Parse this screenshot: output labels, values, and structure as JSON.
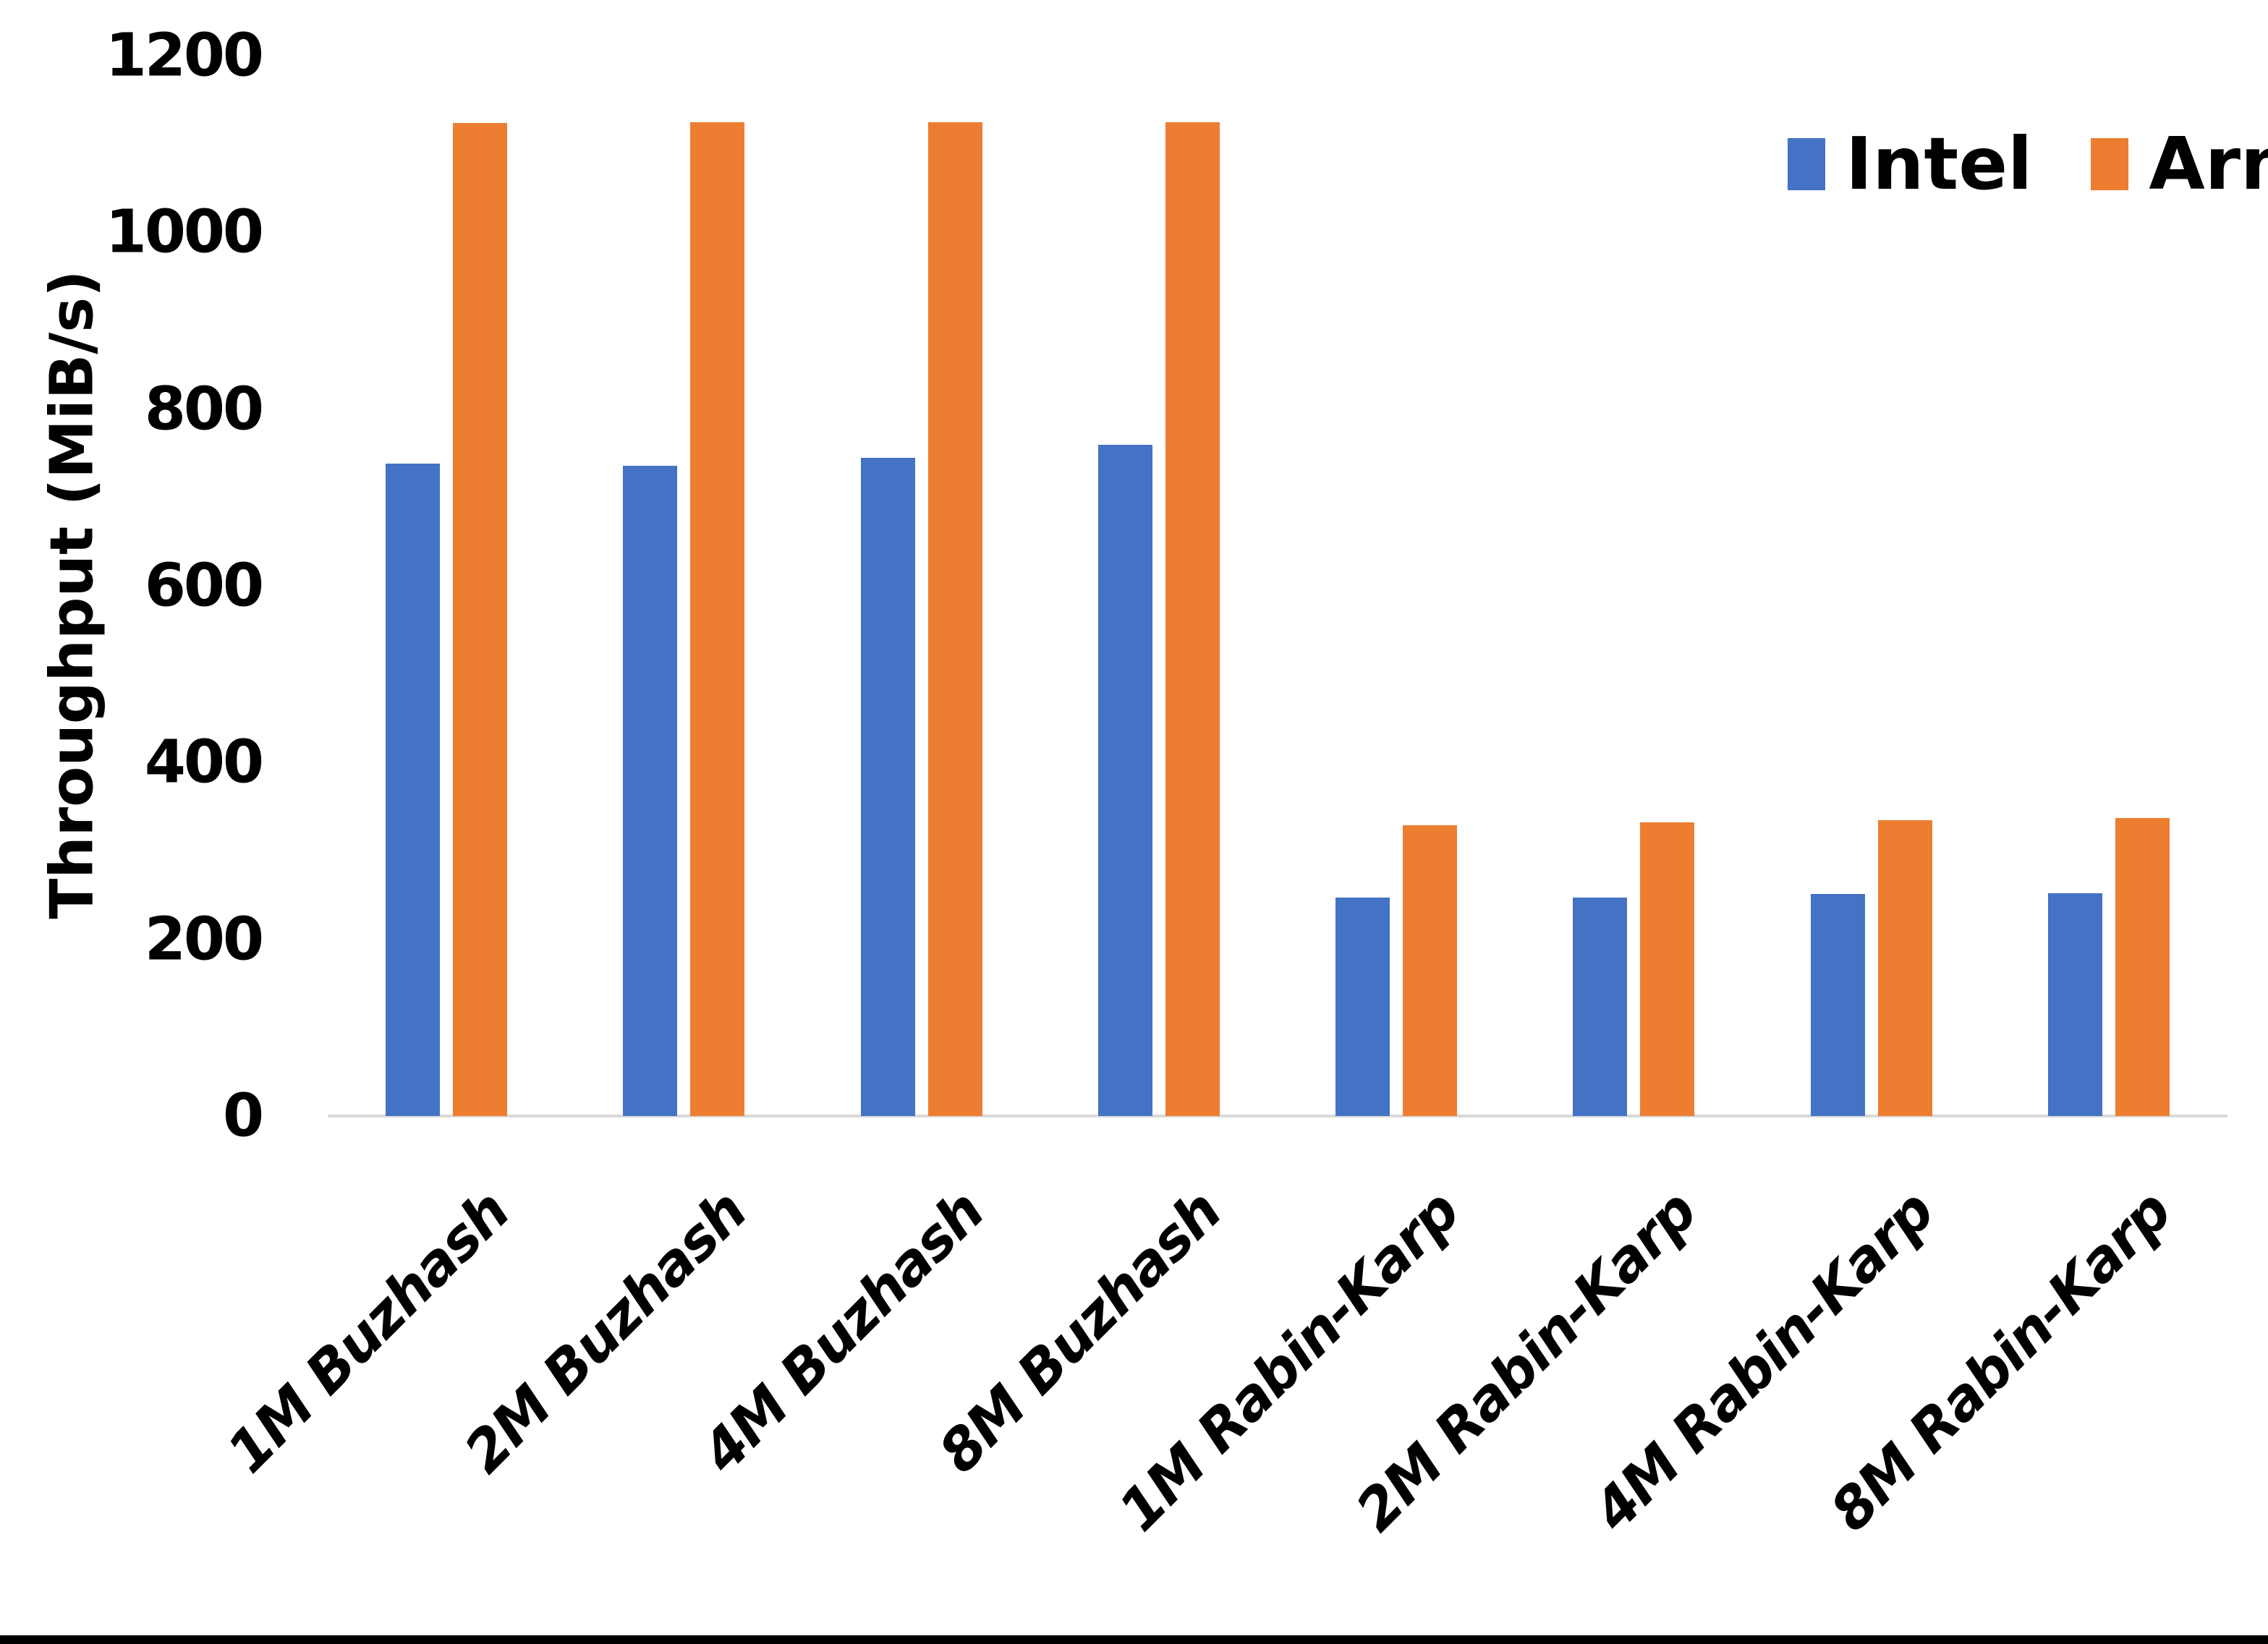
{
  "chart_data": {
    "type": "bar",
    "title": "",
    "xlabel": "",
    "ylabel": "Throughput (MiB/s)",
    "categories": [
      "1M Buzhash",
      "2M Buzhash",
      "4M Buzhash",
      "8M Buzhash",
      "1M Rabin-Karp",
      "2M Rabin-Karp",
      "4M Rabin-Karp",
      "8M Rabin-Karp"
    ],
    "series": [
      {
        "name": "Intel",
        "color": "#4472C4",
        "values": [
          738,
          736,
          745,
          760,
          247,
          247,
          251,
          252
        ]
      },
      {
        "name": "Arm",
        "color": "#ED7D31",
        "values": [
          1124,
          1125,
          1125,
          1125,
          329,
          332,
          335,
          337
        ]
      }
    ],
    "ylim": [
      0,
      1200
    ],
    "yticks": [
      0,
      200,
      400,
      600,
      800,
      1000,
      1200
    ],
    "grid": "off",
    "legend_position": "top-right",
    "x_tick_label_rotation_deg": 45,
    "x_tick_label_style": "italic",
    "axis_line_color": "#D9D9D9",
    "text_color": "#000000",
    "background_color": "#FFFFFF"
  }
}
